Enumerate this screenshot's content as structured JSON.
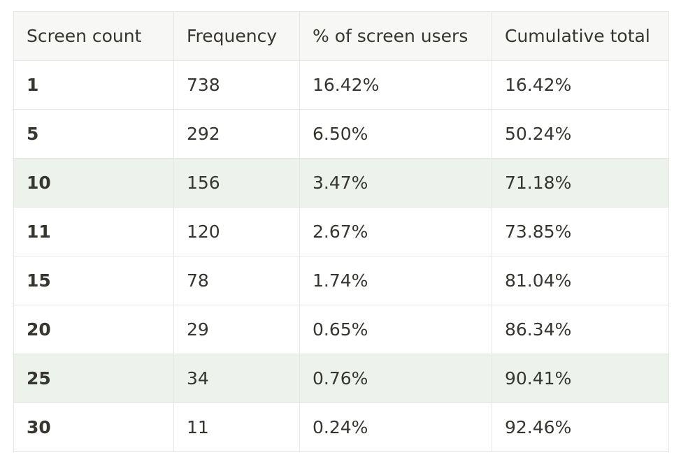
{
  "table": {
    "headers": [
      "Screen count",
      "Frequency",
      "% of screen users",
      "Cumulative total"
    ],
    "rows": [
      {
        "cells": [
          "1",
          "738",
          "16.42%",
          "16.42%"
        ],
        "highlight": false
      },
      {
        "cells": [
          "5",
          "292",
          "6.50%",
          "50.24%"
        ],
        "highlight": false
      },
      {
        "cells": [
          "10",
          "156",
          "3.47%",
          "71.18%"
        ],
        "highlight": true
      },
      {
        "cells": [
          "11",
          "120",
          "2.67%",
          "73.85%"
        ],
        "highlight": false
      },
      {
        "cells": [
          "15",
          "78",
          "1.74%",
          "81.04%"
        ],
        "highlight": false
      },
      {
        "cells": [
          "20",
          "29",
          "0.65%",
          "86.34%"
        ],
        "highlight": false
      },
      {
        "cells": [
          "25",
          "34",
          "0.76%",
          "90.41%"
        ],
        "highlight": true
      },
      {
        "cells": [
          "30",
          "11",
          "0.24%",
          "92.46%"
        ],
        "highlight": false
      }
    ]
  },
  "colors": {
    "header_bg": "#f7f7f5",
    "highlight_bg": "#edf3ec",
    "border": "#e6e6e4",
    "text": "#37352f"
  }
}
